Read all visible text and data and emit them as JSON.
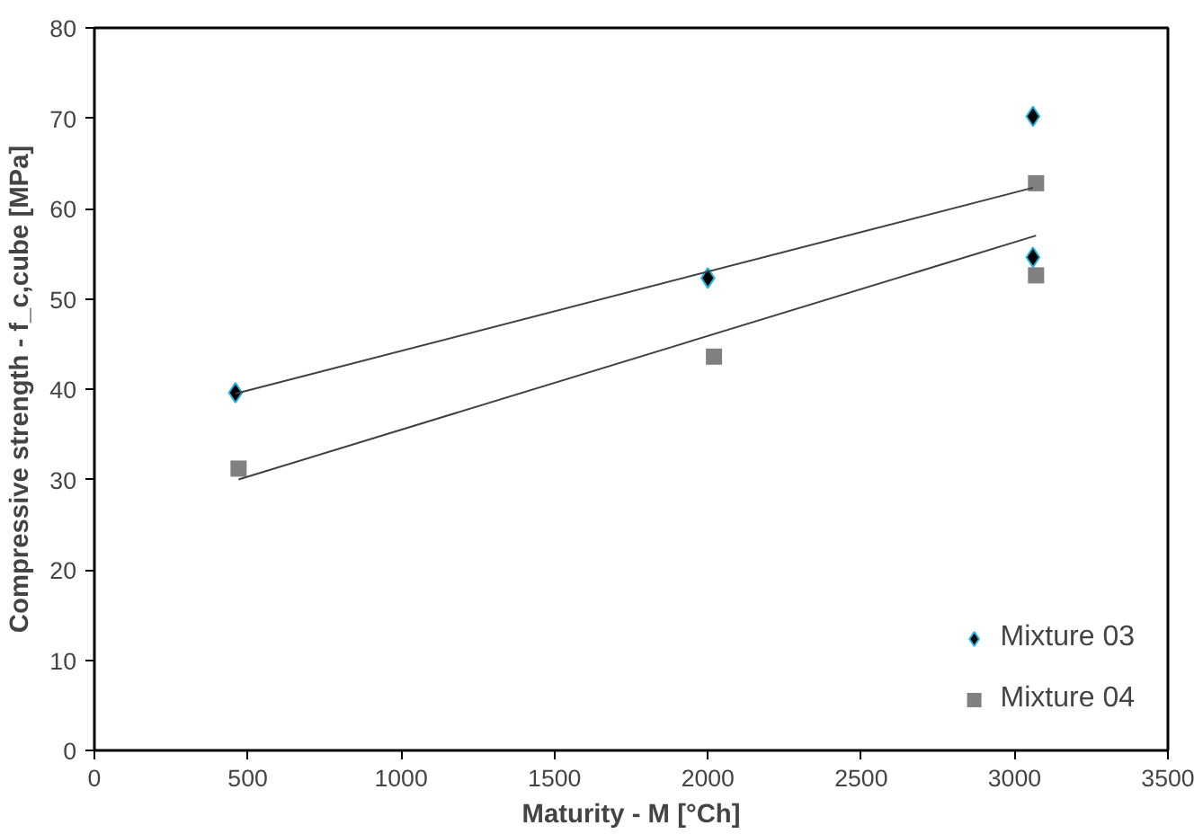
{
  "chart_data": {
    "type": "scatter",
    "xlabel": "Maturity - M [°Ch]",
    "ylabel": "Compressive strength - f_c,cube [MPa]",
    "xlim": [
      0,
      3500
    ],
    "xticks": [
      0,
      500,
      1000,
      1500,
      2000,
      2500,
      3000,
      3500
    ],
    "ylim": [
      0,
      80
    ],
    "yticks": [
      0,
      10,
      20,
      30,
      40,
      50,
      60,
      70,
      80
    ],
    "grid": false,
    "legend": "bottom right",
    "series": [
      {
        "name": "Mixture 03",
        "color": "#000000",
        "marker": "diamond",
        "x": [
          460,
          2000,
          3060,
          3060
        ],
        "values": [
          39.6,
          52.3,
          70.2,
          54.6
        ]
      },
      {
        "name": "Mixture 04",
        "color": "#808080",
        "marker": "square",
        "x": [
          470,
          2020,
          3070,
          3070
        ],
        "values": [
          31.2,
          43.6,
          62.8,
          52.6
        ]
      },
      {
        "type": "line",
        "color": "#404040",
        "x": [
          460,
          3060
        ],
        "values": [
          39.5,
          62.3
        ]
      },
      {
        "type": "line",
        "color": "#404040",
        "x": [
          470,
          3070
        ],
        "values": [
          30.0,
          57.0
        ]
      }
    ]
  }
}
